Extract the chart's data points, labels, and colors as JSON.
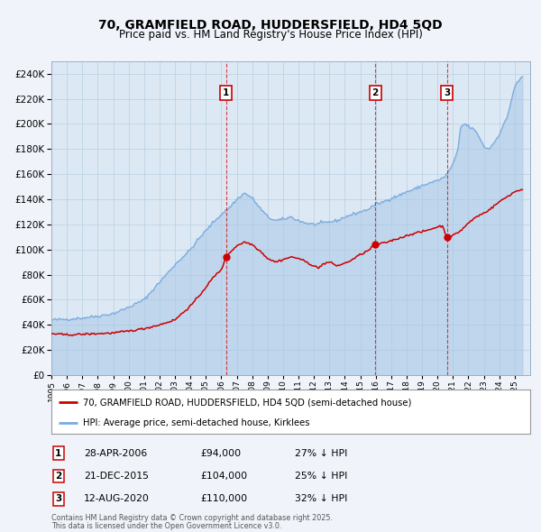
{
  "title": "70, GRAMFIELD ROAD, HUDDERSFIELD, HD4 5QD",
  "subtitle": "Price paid vs. HM Land Registry's House Price Index (HPI)",
  "title_fontsize": 10,
  "subtitle_fontsize": 8.5,
  "background_color": "#f0f4fa",
  "plot_bg_color": "#dce9f5",
  "grid_color": "#b8cfe0",
  "red_line_color": "#cc0000",
  "blue_line_color": "#7aaadd",
  "blue_fill_color": "#a8c8e8",
  "ylim": [
    0,
    250000
  ],
  "yticks": [
    0,
    20000,
    40000,
    60000,
    80000,
    100000,
    120000,
    140000,
    160000,
    180000,
    200000,
    220000,
    240000
  ],
  "transactions": [
    {
      "num": 1,
      "date": "28-APR-2006",
      "price": 94000,
      "pct": "27%",
      "x_year": 2006.32
    },
    {
      "num": 2,
      "date": "21-DEC-2015",
      "price": 104000,
      "pct": "25%",
      "x_year": 2015.97
    },
    {
      "num": 3,
      "date": "12-AUG-2020",
      "price": 110000,
      "pct": "32%",
      "x_year": 2020.62
    }
  ],
  "legend_red_label": "70, GRAMFIELD ROAD, HUDDERSFIELD, HD4 5QD (semi-detached house)",
  "legend_blue_label": "HPI: Average price, semi-detached house, Kirklees",
  "footnote_line1": "Contains HM Land Registry data © Crown copyright and database right 2025.",
  "footnote_line2": "This data is licensed under the Open Government Licence v3.0.",
  "xmin": 1995,
  "xmax": 2026,
  "hpi_anchors": [
    [
      1995.0,
      44000
    ],
    [
      1996.0,
      44500
    ],
    [
      1997.0,
      45500
    ],
    [
      1998.0,
      47000
    ],
    [
      1999.0,
      49000
    ],
    [
      2000.0,
      54000
    ],
    [
      2001.0,
      60000
    ],
    [
      2002.0,
      74000
    ],
    [
      2003.0,
      88000
    ],
    [
      2004.0,
      100000
    ],
    [
      2004.5,
      108000
    ],
    [
      2005.0,
      115000
    ],
    [
      2005.5,
      122000
    ],
    [
      2006.0,
      128000
    ],
    [
      2006.5,
      133000
    ],
    [
      2007.0,
      140000
    ],
    [
      2007.5,
      145000
    ],
    [
      2008.0,
      141000
    ],
    [
      2008.5,
      133000
    ],
    [
      2009.0,
      126000
    ],
    [
      2009.5,
      123000
    ],
    [
      2010.0,
      124000
    ],
    [
      2010.5,
      126000
    ],
    [
      2011.0,
      123000
    ],
    [
      2011.5,
      121000
    ],
    [
      2012.0,
      120000
    ],
    [
      2012.5,
      121000
    ],
    [
      2013.0,
      122000
    ],
    [
      2013.5,
      123000
    ],
    [
      2014.0,
      126000
    ],
    [
      2014.5,
      128000
    ],
    [
      2015.0,
      130000
    ],
    [
      2015.5,
      132000
    ],
    [
      2016.0,
      136000
    ],
    [
      2016.5,
      138000
    ],
    [
      2017.0,
      141000
    ],
    [
      2017.5,
      143000
    ],
    [
      2018.0,
      146000
    ],
    [
      2018.5,
      148000
    ],
    [
      2019.0,
      151000
    ],
    [
      2019.5,
      153000
    ],
    [
      2020.0,
      155000
    ],
    [
      2020.5,
      158000
    ],
    [
      2021.0,
      168000
    ],
    [
      2021.3,
      178000
    ],
    [
      2021.5,
      198000
    ],
    [
      2021.8,
      200000
    ],
    [
      2022.0,
      198000
    ],
    [
      2022.3,
      196000
    ],
    [
      2022.6,
      192000
    ],
    [
      2023.0,
      182000
    ],
    [
      2023.3,
      180000
    ],
    [
      2023.6,
      184000
    ],
    [
      2024.0,
      192000
    ],
    [
      2024.5,
      205000
    ],
    [
      2025.0,
      230000
    ],
    [
      2025.5,
      238000
    ]
  ],
  "red_anchors": [
    [
      1995.0,
      33000
    ],
    [
      1996.0,
      32000
    ],
    [
      1997.0,
      32500
    ],
    [
      1998.0,
      33000
    ],
    [
      1999.0,
      33500
    ],
    [
      2000.0,
      35000
    ],
    [
      2001.0,
      37000
    ],
    [
      2002.0,
      40000
    ],
    [
      2003.0,
      44000
    ],
    [
      2004.0,
      55000
    ],
    [
      2004.5,
      62000
    ],
    [
      2005.0,
      70000
    ],
    [
      2005.5,
      78000
    ],
    [
      2006.0,
      84000
    ],
    [
      2006.32,
      94000
    ],
    [
      2006.5,
      97000
    ],
    [
      2007.0,
      103000
    ],
    [
      2007.5,
      106000
    ],
    [
      2008.0,
      104000
    ],
    [
      2008.5,
      99000
    ],
    [
      2009.0,
      93000
    ],
    [
      2009.5,
      90000
    ],
    [
      2010.0,
      92000
    ],
    [
      2010.5,
      94000
    ],
    [
      2011.0,
      93000
    ],
    [
      2011.5,
      90000
    ],
    [
      2012.0,
      87000
    ],
    [
      2012.3,
      85000
    ],
    [
      2012.5,
      88000
    ],
    [
      2013.0,
      90000
    ],
    [
      2013.5,
      87000
    ],
    [
      2014.0,
      89000
    ],
    [
      2014.5,
      92000
    ],
    [
      2015.0,
      96000
    ],
    [
      2015.5,
      99000
    ],
    [
      2015.97,
      104000
    ],
    [
      2016.0,
      104000
    ],
    [
      2016.5,
      105000
    ],
    [
      2017.0,
      107000
    ],
    [
      2017.5,
      109000
    ],
    [
      2018.0,
      111000
    ],
    [
      2018.5,
      113000
    ],
    [
      2019.0,
      114000
    ],
    [
      2019.5,
      116000
    ],
    [
      2020.0,
      118000
    ],
    [
      2020.3,
      119000
    ],
    [
      2020.62,
      110000
    ],
    [
      2021.0,
      111000
    ],
    [
      2021.5,
      115000
    ],
    [
      2022.0,
      121000
    ],
    [
      2022.5,
      126000
    ],
    [
      2023.0,
      129000
    ],
    [
      2023.5,
      133000
    ],
    [
      2024.0,
      138000
    ],
    [
      2024.5,
      142000
    ],
    [
      2025.0,
      146000
    ],
    [
      2025.5,
      148000
    ]
  ]
}
